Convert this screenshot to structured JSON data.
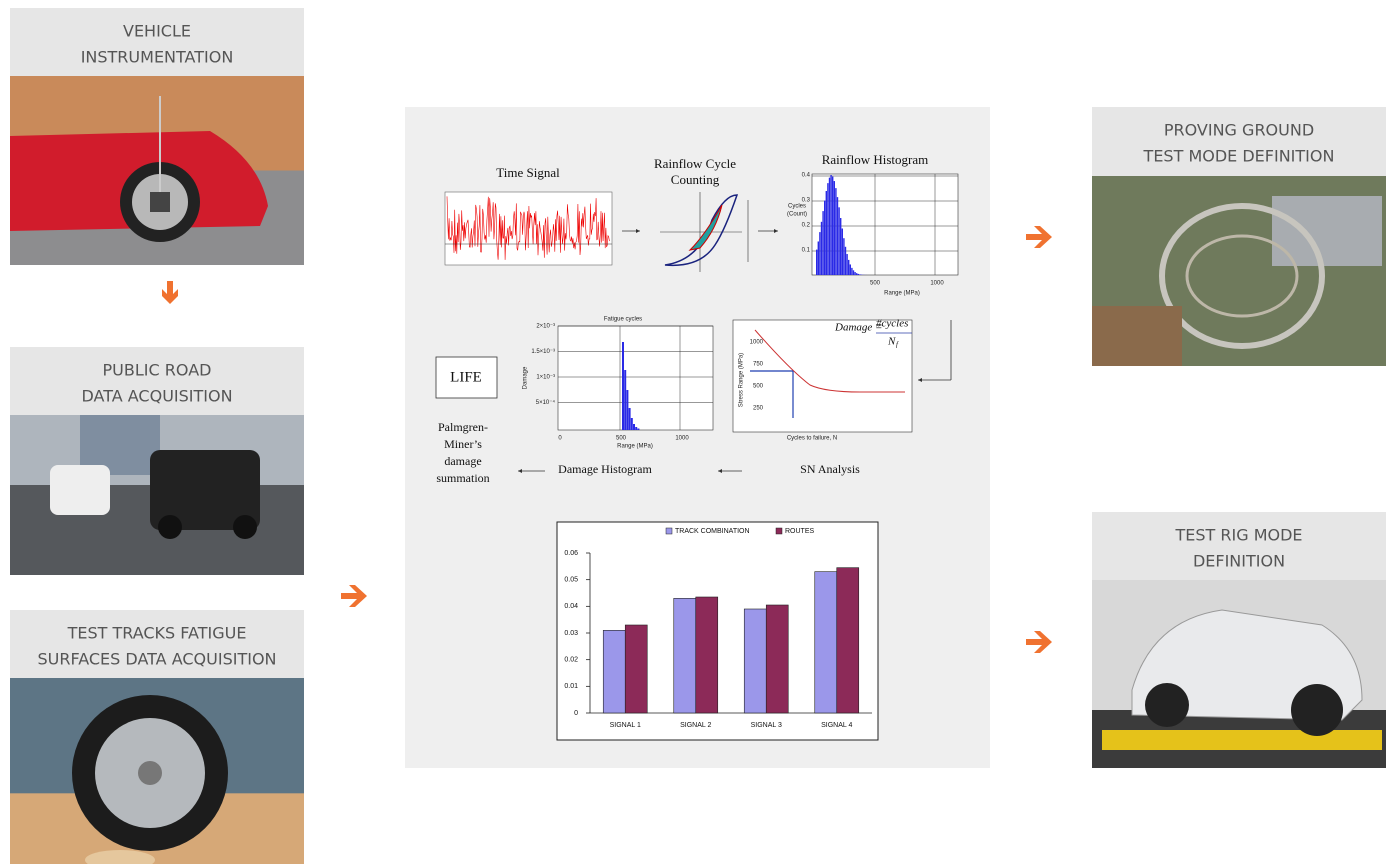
{
  "steps_left": [
    {
      "title": [
        "VEHICLE",
        "INSTRUMENTATION"
      ]
    },
    {
      "title": [
        "PUBLIC ROAD",
        "DATA ACQUISITION"
      ]
    },
    {
      "title": [
        "TEST TRACKS FATIGUE",
        "SURFACES DATA ACQUISITION"
      ]
    }
  ],
  "steps_right": [
    {
      "title": [
        "PROVING GROUND",
        "TEST MODE DEFINITION"
      ]
    },
    {
      "title": [
        "TEST RIG MODE",
        "DEFINITION"
      ]
    }
  ],
  "process": {
    "time_signal": {
      "title": "Time Signal"
    },
    "rainflow_counting": {
      "title": [
        "Rainflow Cycle",
        "Counting"
      ]
    },
    "rainflow_histogram": {
      "title": "Rainflow Histogram",
      "y_label": [
        "Cycles",
        "(Count)"
      ],
      "x_label": "Range (MPa)",
      "yticks": [
        "0.4",
        "0.3",
        "0.2",
        "0.1"
      ],
      "xticks": [
        "500",
        "1000"
      ]
    },
    "fatigue_cycles": {
      "title": "Fatigue cycles",
      "y_label": "Damage",
      "x_label": "Range (MPa)",
      "yticks": [
        "2×10⁻³",
        "1.5×10⁻³",
        "1×10⁻³",
        "5×10⁻⁴"
      ],
      "xticks": [
        "0",
        "500",
        "1000"
      ]
    },
    "sn_curve": {
      "formula_top": "#cycles",
      "formula_left": "Damage =",
      "formula_bottom": "N",
      "formula_sub": "f",
      "y_label": "Stress Range (MPa)",
      "x_label": "Cycles to failure, N",
      "yticks": [
        "1000",
        "750",
        "500",
        "250"
      ]
    },
    "life": "LIFE",
    "palmgren": [
      "Palmgren-",
      "Miner’s",
      "damage",
      "summation"
    ],
    "damage_histogram": "Damage Histogram",
    "sn_analysis": "SN Analysis"
  },
  "damage_chart": {
    "type": "bar",
    "categories": [
      "SIGNAL 1",
      "SIGNAL 2",
      "SIGNAL 3",
      "SIGNAL 4"
    ],
    "series": [
      {
        "name": "TRACK COMBINATION",
        "color": "#9b97ea",
        "values": [
          0.031,
          0.043,
          0.039,
          0.053
        ]
      },
      {
        "name": "ROUTES",
        "color": "#8c2a58",
        "values": [
          0.033,
          0.0435,
          0.0405,
          0.0545
        ]
      }
    ],
    "ylim": [
      0,
      0.06
    ],
    "yticks": [
      0,
      0.01,
      0.02,
      0.03,
      0.04,
      0.05,
      0.06
    ]
  }
}
